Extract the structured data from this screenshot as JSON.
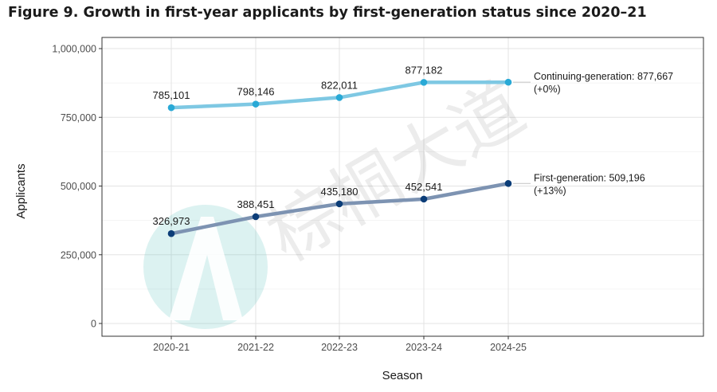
{
  "chart_data": {
    "type": "line",
    "title": "Figure 9. Growth in first-year applicants by first-generation status since 2020–21",
    "xlabel": "Season",
    "ylabel": "Applicants",
    "categories": [
      "2020-21",
      "2021-22",
      "2022-23",
      "2023-24",
      "2024-25"
    ],
    "ylim": [
      0,
      1000000
    ],
    "yticks": [
      0,
      250000,
      500000,
      750000,
      1000000
    ],
    "ytick_labels": [
      "0",
      "250,000",
      "500,000",
      "750,000",
      "1,000,000"
    ],
    "grid": true,
    "series": [
      {
        "name": "Continuing-generation",
        "values": [
          785101,
          798146,
          822011,
          877182,
          877667
        ],
        "point_labels": [
          "785,101",
          "798,146",
          "822,011",
          "877,182",
          ""
        ],
        "end_label": [
          "Continuing-generation: 877,667",
          "(+0%)"
        ],
        "line_color": "#7ec8e3",
        "point_color": "#29a9d6"
      },
      {
        "name": "First-generation",
        "values": [
          326973,
          388451,
          435180,
          452541,
          509196
        ],
        "point_labels": [
          "326,973",
          "388,451",
          "435,180",
          "452,541",
          ""
        ],
        "end_label": [
          "First-generation: 509,196",
          "(+13%)"
        ],
        "line_color": "#7d93b2",
        "point_color": "#0b3d78"
      }
    ]
  },
  "watermark": {
    "text": "棕桐大道",
    "logo_color": "#5ec4c0"
  }
}
